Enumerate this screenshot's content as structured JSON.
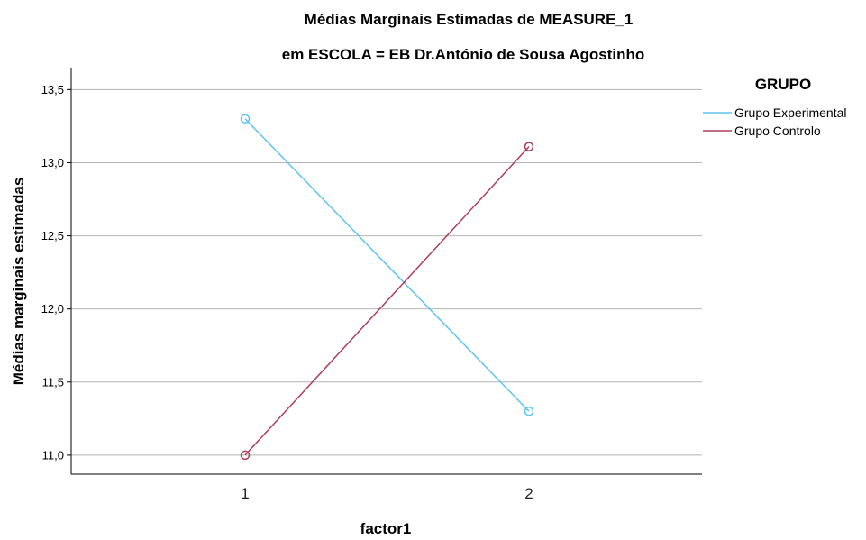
{
  "chart_data": {
    "type": "line",
    "title": "Médias Marginais Estimadas de MEASURE_1",
    "subtitle": "em ESCOLA = EB Dr.António de Sousa Agostinho",
    "xlabel": "factor1",
    "ylabel": "Médias marginais estimadas",
    "categories": [
      "1",
      "2"
    ],
    "ylim": [
      10.87,
      13.65
    ],
    "yticks": [
      11.0,
      11.5,
      12.0,
      12.5,
      13.0,
      13.5
    ],
    "ytick_labels": [
      "11,0",
      "11,5",
      "12,0",
      "12,5",
      "13,0",
      "13,5"
    ],
    "grid": true,
    "legend_title": "GRUPO",
    "legend_position": "top-right",
    "series": [
      {
        "name": "Grupo Experimental",
        "values": [
          13.3,
          11.3
        ],
        "color": "#5bc4f0"
      },
      {
        "name": "Grupo Controlo",
        "values": [
          11.0,
          13.11
        ],
        "color": "#b03c5c"
      }
    ]
  }
}
